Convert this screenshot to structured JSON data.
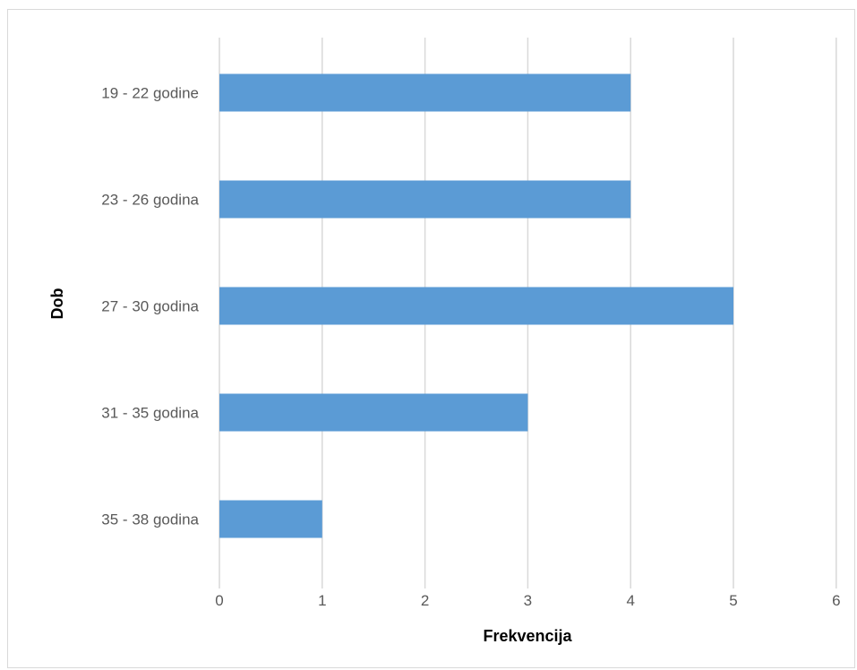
{
  "chart_data": {
    "type": "bar",
    "orientation": "horizontal",
    "categories": [
      "19 - 22 godine",
      "23 - 26 godina",
      "27 - 30 godina",
      "31 - 35 godina",
      "35 - 38 godina"
    ],
    "values": [
      4,
      4,
      5,
      3,
      1
    ],
    "xlabel": "Frekvencija",
    "ylabel": "Dob",
    "xlim": [
      0,
      6
    ],
    "xticks": [
      "0",
      "1",
      "2",
      "3",
      "4",
      "5",
      "6"
    ],
    "grid": "vertical",
    "legend": "none",
    "bar_color": "#5b9bd5",
    "grid_color": "#d9d9d9"
  }
}
